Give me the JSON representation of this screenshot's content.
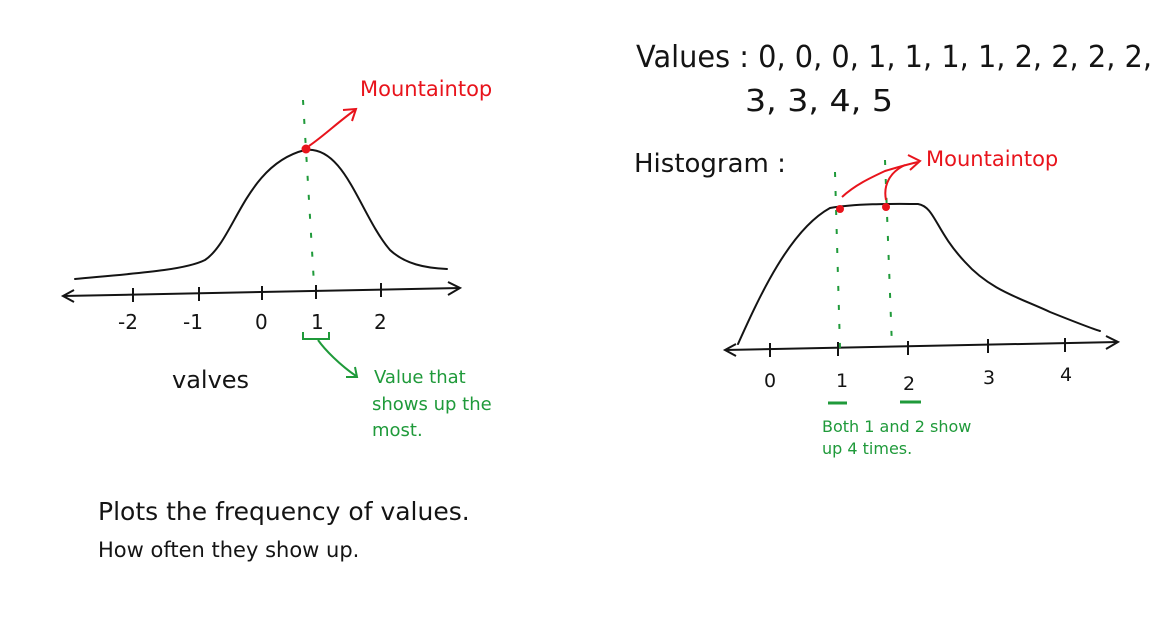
{
  "colors": {
    "ink": "#141414",
    "annotation_red": "#e8141c",
    "annotation_green": "#1f9a3a",
    "background": "#ffffff"
  },
  "left_sketch": {
    "peak_label": "Mountaintop",
    "axis_ticks": [
      "-2",
      "-1",
      "0",
      "1",
      "2"
    ],
    "axis_label": "valves",
    "mode_note": [
      "Value that",
      "shows up the",
      "most."
    ],
    "caption": [
      "Plots the frequency of values.",
      "How often they show up."
    ]
  },
  "right_sketch": {
    "values_line_1": "Values : 0, 0, 0, 1, 1, 1, 1, 2, 2, 2, 2,",
    "values_line_2": "3, 3, 4, 5",
    "histogram_label": "Histogram :",
    "peak_label": "Mountaintop",
    "axis_ticks": [
      "0",
      "1",
      "2",
      "3",
      "4"
    ],
    "mode_note": [
      "Both 1 and 2 show",
      "up 4 times."
    ]
  }
}
